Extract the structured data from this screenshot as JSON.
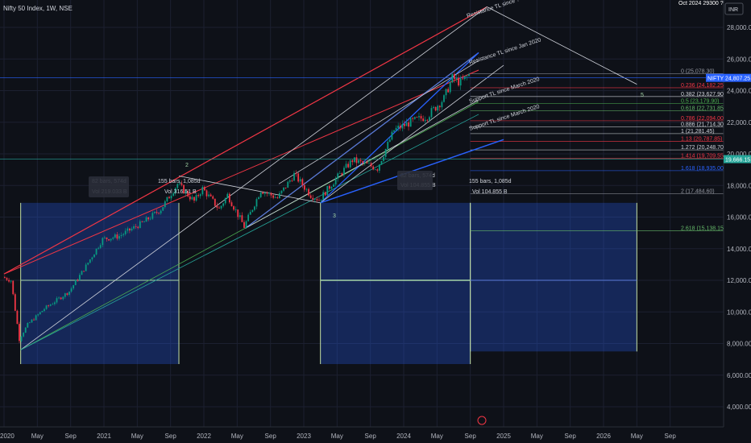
{
  "header": {
    "title": "Nifty 50 Index, 1W, NSE",
    "top_right_label": "Oct 2024 29300 ?",
    "currency": "INR"
  },
  "chart_data": {
    "type": "candlestick",
    "symbol": "NIFTY",
    "y_axis": {
      "ticks": [
        4000,
        6000,
        8000,
        10000,
        12000,
        14000,
        16000,
        18000,
        20000,
        22000,
        24000,
        26000,
        28000
      ],
      "tick_labels": [
        "4,000.00",
        "6,000.00",
        "8,000.00",
        "10,000.00",
        "12,000.00",
        "14,000.00",
        "16,000.00",
        "18,000.00",
        "20,000.00",
        "22,000.00",
        "24,000.00",
        "26,000.00",
        "28,000.00"
      ],
      "range": [
        3200,
        29800
      ]
    },
    "x_axis": {
      "labels": [
        "2020",
        "May",
        "Sep",
        "2021",
        "May",
        "Sep",
        "2022",
        "May",
        "Sep",
        "2023",
        "May",
        "Sep",
        "2024",
        "May",
        "Sep",
        "2025",
        "May",
        "Sep",
        "2026",
        "May",
        "Sep"
      ],
      "range": [
        "2020-01",
        "2026-10"
      ]
    },
    "last_price": {
      "value": 24807.25,
      "label": "24,807.25",
      "tag": "NIFTY"
    },
    "secondary_price_tag": {
      "value": 19666,
      "label": "19,666.15"
    },
    "fib_levels": [
      {
        "label": "0 (25,078.30)",
        "value": 25078.3,
        "color": "#9598a1"
      },
      {
        "label": "0.236 (24,182.25)",
        "value": 24182.25,
        "color": "#f23645"
      },
      {
        "label": "0.382 (23,627.90)",
        "value": 23627.9,
        "color": "#d1d4dc"
      },
      {
        "label": "0.5 (23,179.90)",
        "value": 23179.9,
        "color": "#4caf50"
      },
      {
        "label": "0.618 (22,731.85)",
        "value": 22731.85,
        "color": "#66bb6a"
      },
      {
        "label": "0.786 (22,094.00)",
        "value": 22094.0,
        "color": "#f23645"
      },
      {
        "label": "0.886 (21,714.30)",
        "value": 21714.3,
        "color": "#d1d4dc"
      },
      {
        "label": "1 (21,281.45)",
        "value": 21281.45,
        "color": "#d1d4dc"
      },
      {
        "label": "1.13 (20,787.85)",
        "value": 20787.85,
        "color": "#f23645"
      },
      {
        "label": "1.272 (20,248.70)",
        "value": 20248.7,
        "color": "#d1d4dc"
      },
      {
        "label": "1.414 (19,709.55)",
        "value": 19709.55,
        "color": "#f23645"
      },
      {
        "label": "1.618 (18,935.00)",
        "value": 18935.0,
        "color": "#2962ff"
      },
      {
        "label": "2 (17,484.60)",
        "value": 17484.6,
        "color": "#9598a1"
      },
      {
        "label": "2.618 (15,138.15)",
        "value": 15138.15,
        "color": "#66bb6a"
      }
    ],
    "annotations": [
      {
        "text": "Resistance TL since ?",
        "color": "#d1d4dc"
      },
      {
        "text": "Resistance TL since Jan 2020",
        "color": "#d1d4dc"
      },
      {
        "text": "Support TL since March 2020",
        "color": "#d1d4dc"
      },
      {
        "text": "Support TL since March 2020",
        "color": "#d1d4dc"
      },
      {
        "text": "2",
        "color": "#a5d6a7"
      },
      {
        "text": "3",
        "color": "#a5d6a7"
      },
      {
        "text": "5",
        "color": "#a5d6a7"
      },
      {
        "text": "155 bars, 1,085d",
        "color": "#d1d4dc"
      },
      {
        "text": "Vol 316.51 B",
        "color": "#d1d4dc"
      },
      {
        "text": "155 bars, 1,085d",
        "color": "#d1d4dc"
      },
      {
        "text": "Vol 104.855 B",
        "color": "#d1d4dc"
      },
      {
        "text": "82 bars, 574d",
        "color": "#d1d4dc"
      },
      {
        "text": "Vol 219.033 B",
        "color": "#d1d4dc"
      },
      {
        "text": "82 bars, 574d",
        "color": "#d1d4dc"
      },
      {
        "text": "Vol 104.855 B",
        "color": "#d1d4dc"
      }
    ],
    "price_path": [
      {
        "t": "2020-01",
        "v": 12200
      },
      {
        "t": "2020-02",
        "v": 12000
      },
      {
        "t": "2020-03",
        "v": 8300
      },
      {
        "t": "2020-04",
        "v": 9200
      },
      {
        "t": "2020-06",
        "v": 10200
      },
      {
        "t": "2020-09",
        "v": 11300
      },
      {
        "t": "2020-11",
        "v": 12900
      },
      {
        "t": "2021-01",
        "v": 14600
      },
      {
        "t": "2021-03",
        "v": 14800
      },
      {
        "t": "2021-06",
        "v": 15700
      },
      {
        "t": "2021-08",
        "v": 16500
      },
      {
        "t": "2021-10",
        "v": 18100
      },
      {
        "t": "2021-12",
        "v": 17000
      },
      {
        "t": "2022-01",
        "v": 17800
      },
      {
        "t": "2022-03",
        "v": 16500
      },
      {
        "t": "2022-04",
        "v": 17400
      },
      {
        "t": "2022-06",
        "v": 15400
      },
      {
        "t": "2022-08",
        "v": 17700
      },
      {
        "t": "2022-10",
        "v": 17200
      },
      {
        "t": "2022-12",
        "v": 18700
      },
      {
        "t": "2023-02",
        "v": 17400
      },
      {
        "t": "2023-03",
        "v": 17100
      },
      {
        "t": "2023-05",
        "v": 18400
      },
      {
        "t": "2023-07",
        "v": 19600
      },
      {
        "t": "2023-10",
        "v": 19100
      },
      {
        "t": "2023-12",
        "v": 21500
      },
      {
        "t": "2024-02",
        "v": 22000
      },
      {
        "t": "2024-04",
        "v": 22400
      },
      {
        "t": "2024-06",
        "v": 23500
      },
      {
        "t": "2024-07",
        "v": 24800
      },
      {
        "t": "2024-08",
        "v": 24500
      },
      {
        "t": "2024-09",
        "v": 25000
      }
    ],
    "colors": {
      "up": "#089981",
      "down": "#f23645",
      "box": "#2962ff",
      "resistance": "#f23645"
    }
  }
}
